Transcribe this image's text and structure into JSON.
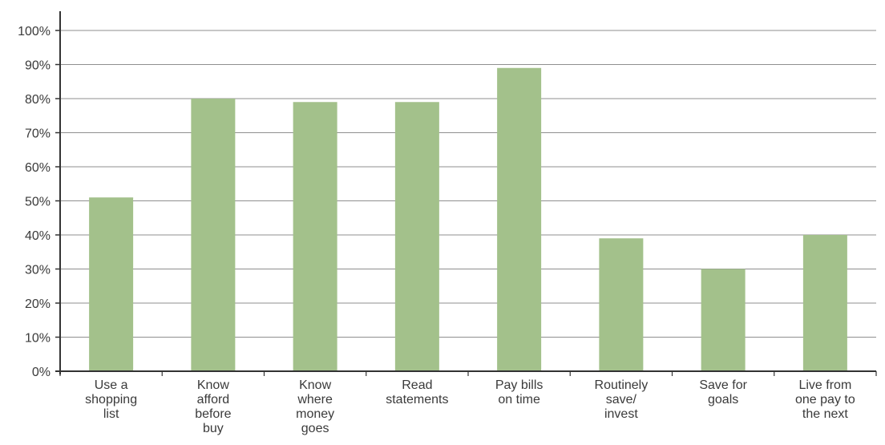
{
  "chart_data": {
    "type": "bar",
    "categories": [
      [
        "Use a",
        "shopping",
        "list"
      ],
      [
        "Know",
        "afford",
        "before",
        "buy"
      ],
      [
        "Know",
        "where",
        "money",
        "goes"
      ],
      [
        "Read",
        "statements"
      ],
      [
        "Pay bills",
        "on time"
      ],
      [
        "Routinely",
        "save/",
        "invest"
      ],
      [
        "Save for",
        "goals"
      ],
      [
        "Live from",
        "one pay to",
        "the next"
      ]
    ],
    "values": [
      51,
      80,
      79,
      79,
      89,
      39,
      30,
      40
    ],
    "ylim": [
      0,
      100
    ],
    "yticks": [
      0,
      10,
      20,
      30,
      40,
      50,
      60,
      70,
      80,
      90,
      100
    ],
    "ytick_labels": [
      "0%",
      "10%",
      "20%",
      "30%",
      "40%",
      "50%",
      "60%",
      "70%",
      "80%",
      "90%",
      "100%"
    ],
    "grid": true,
    "colors": {
      "bar": "#a3c18b",
      "grid": "#8f8f8f",
      "axis": "#333333",
      "text": "#3a3a3a"
    }
  }
}
